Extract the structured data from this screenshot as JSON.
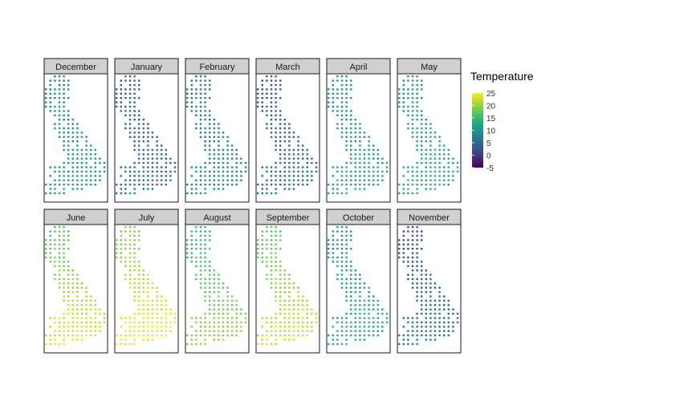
{
  "chart_data": {
    "type": "heatmap",
    "facet_by": "month",
    "facets": [
      "December",
      "January",
      "February",
      "March",
      "April",
      "May",
      "June",
      "July",
      "August",
      "September",
      "October",
      "November"
    ],
    "facet_layout": {
      "columns": 6,
      "rows": 2
    },
    "legend": {
      "title": "Temperature",
      "ticks": [
        "25",
        "20",
        "15",
        "10",
        "5",
        "0",
        "-5"
      ],
      "range": [
        -5,
        25
      ],
      "palette": "viridis",
      "position": "right"
    },
    "approx_temperature_by_month": {
      "December": {
        "north": 9,
        "south": 12
      },
      "January": {
        "north": 4,
        "south": 7
      },
      "February": {
        "north": 7,
        "south": 10
      },
      "March": {
        "north": 3,
        "south": 7
      },
      "April": {
        "north": 10,
        "south": 13
      },
      "May": {
        "north": 11,
        "south": 14
      },
      "June": {
        "north": 17,
        "south": 24
      },
      "July": {
        "north": 19,
        "south": 25
      },
      "August": {
        "north": 15,
        "south": 20
      },
      "September": {
        "north": 17,
        "south": 23
      },
      "October": {
        "north": 11,
        "south": 14
      },
      "November": {
        "north": 2,
        "south": 8
      }
    },
    "grid": false,
    "axes_visible": false
  }
}
